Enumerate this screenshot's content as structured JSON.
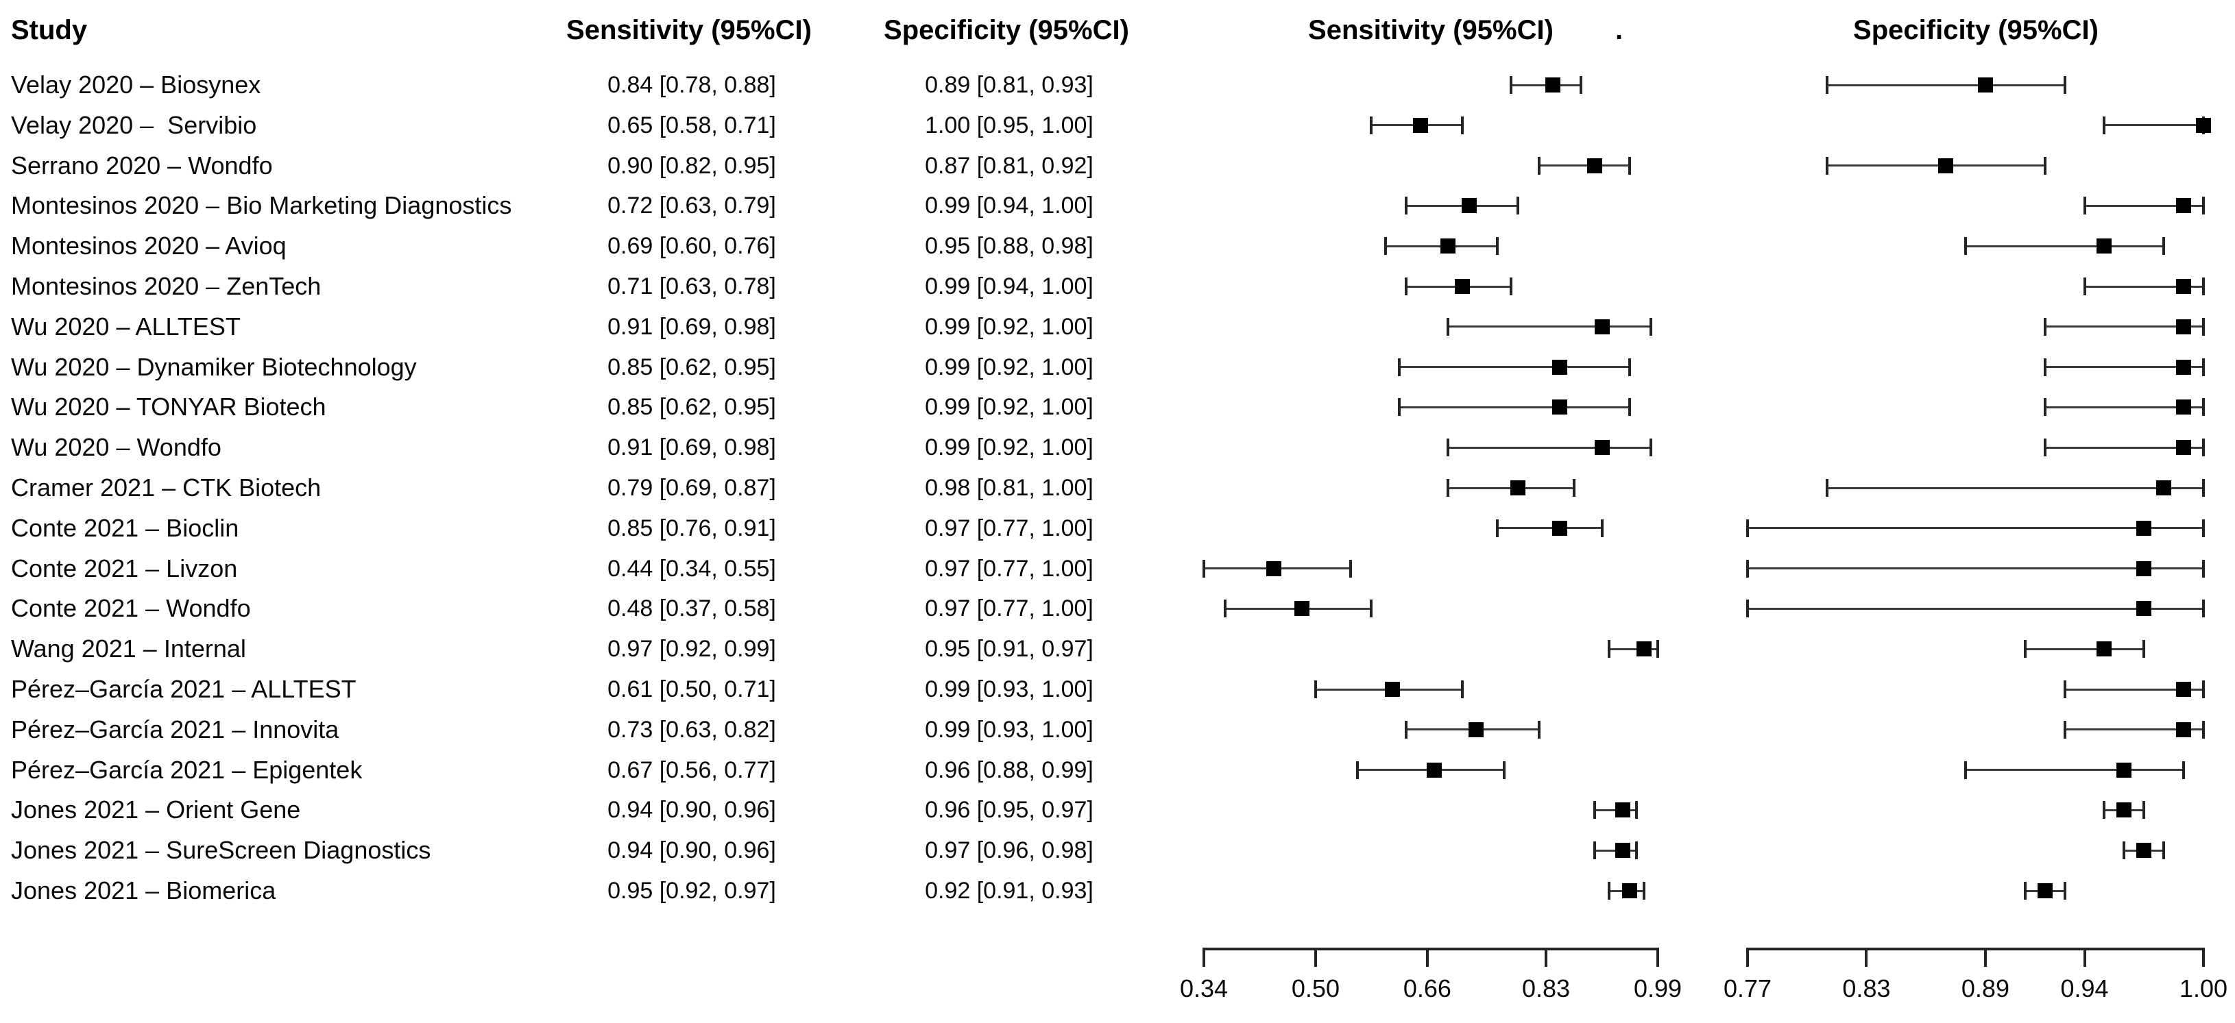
{
  "headers": {
    "study": "Study",
    "sensitivity_column": "Sensitivity (95%CI)",
    "specificity_column": "Specificity (95%CI)",
    "sensitivity_plot": "Sensitivity (95%CI)",
    "specificity_plot": "Specificity (95%CI)",
    "stray_dot": "."
  },
  "chart_data": {
    "type": "scatter",
    "subtype": "paired-forest-plot",
    "title": "",
    "columns": [
      "Study",
      "Sensitivity (95%CI)",
      "Specificity (95%CI)"
    ],
    "legend": "none",
    "grid": false,
    "axes": {
      "sensitivity": {
        "label": "Sensitivity (95%CI)",
        "min": 0.34,
        "max": 0.99,
        "ticks": [
          0.34,
          0.5,
          0.66,
          0.83,
          0.99
        ],
        "tick_labels": [
          "0.34",
          "0.50",
          "0.66",
          "0.83",
          "0.99"
        ]
      },
      "specificity": {
        "label": "Specificity (95%CI)",
        "min": 0.77,
        "max": 1.0,
        "ticks": [
          0.77,
          0.83,
          0.89,
          0.94,
          1.0
        ],
        "tick_labels": [
          "0.77",
          "0.83",
          "0.89",
          "0.94",
          "1.00"
        ]
      }
    },
    "rows": [
      {
        "study": "Velay 2020 – Biosynex",
        "sens": {
          "est": 0.84,
          "lo": 0.78,
          "hi": 0.88,
          "text": "0.84 [0.78, 0.88]"
        },
        "spec": {
          "est": 0.89,
          "lo": 0.81,
          "hi": 0.93,
          "text": "0.89 [0.81, 0.93]"
        }
      },
      {
        "study": "Velay 2020 –  Servibio",
        "sens": {
          "est": 0.65,
          "lo": 0.58,
          "hi": 0.71,
          "text": "0.65 [0.58, 0.71]"
        },
        "spec": {
          "est": 1.0,
          "lo": 0.95,
          "hi": 1.0,
          "text": "1.00 [0.95, 1.00]"
        }
      },
      {
        "study": "Serrano 2020 – Wondfo",
        "sens": {
          "est": 0.9,
          "lo": 0.82,
          "hi": 0.95,
          "text": "0.90 [0.82, 0.95]"
        },
        "spec": {
          "est": 0.87,
          "lo": 0.81,
          "hi": 0.92,
          "text": "0.87 [0.81, 0.92]"
        }
      },
      {
        "study": "Montesinos 2020 – Bio Marketing Diagnostics",
        "sens": {
          "est": 0.72,
          "lo": 0.63,
          "hi": 0.79,
          "text": "0.72 [0.63, 0.79]"
        },
        "spec": {
          "est": 0.99,
          "lo": 0.94,
          "hi": 1.0,
          "text": "0.99 [0.94, 1.00]"
        }
      },
      {
        "study": "Montesinos 2020 – Avioq",
        "sens": {
          "est": 0.69,
          "lo": 0.6,
          "hi": 0.76,
          "text": "0.69 [0.60, 0.76]"
        },
        "spec": {
          "est": 0.95,
          "lo": 0.88,
          "hi": 0.98,
          "text": "0.95 [0.88, 0.98]"
        }
      },
      {
        "study": "Montesinos 2020 – ZenTech",
        "sens": {
          "est": 0.71,
          "lo": 0.63,
          "hi": 0.78,
          "text": "0.71 [0.63, 0.78]"
        },
        "spec": {
          "est": 0.99,
          "lo": 0.94,
          "hi": 1.0,
          "text": "0.99 [0.94, 1.00]"
        }
      },
      {
        "study": "Wu 2020 – ALLTEST",
        "sens": {
          "est": 0.91,
          "lo": 0.69,
          "hi": 0.98,
          "text": "0.91 [0.69, 0.98]"
        },
        "spec": {
          "est": 0.99,
          "lo": 0.92,
          "hi": 1.0,
          "text": "0.99 [0.92, 1.00]"
        }
      },
      {
        "study": "Wu 2020 – Dynamiker Biotechnology",
        "sens": {
          "est": 0.85,
          "lo": 0.62,
          "hi": 0.95,
          "text": "0.85 [0.62, 0.95]"
        },
        "spec": {
          "est": 0.99,
          "lo": 0.92,
          "hi": 1.0,
          "text": "0.99 [0.92, 1.00]"
        }
      },
      {
        "study": "Wu 2020 – TONYAR Biotech",
        "sens": {
          "est": 0.85,
          "lo": 0.62,
          "hi": 0.95,
          "text": "0.85 [0.62, 0.95]"
        },
        "spec": {
          "est": 0.99,
          "lo": 0.92,
          "hi": 1.0,
          "text": "0.99 [0.92, 1.00]"
        }
      },
      {
        "study": "Wu 2020 – Wondfo",
        "sens": {
          "est": 0.91,
          "lo": 0.69,
          "hi": 0.98,
          "text": "0.91 [0.69, 0.98]"
        },
        "spec": {
          "est": 0.99,
          "lo": 0.92,
          "hi": 1.0,
          "text": "0.99 [0.92, 1.00]"
        }
      },
      {
        "study": "Cramer 2021 – CTK Biotech",
        "sens": {
          "est": 0.79,
          "lo": 0.69,
          "hi": 0.87,
          "text": "0.79 [0.69, 0.87]"
        },
        "spec": {
          "est": 0.98,
          "lo": 0.81,
          "hi": 1.0,
          "text": "0.98 [0.81, 1.00]"
        }
      },
      {
        "study": "Conte 2021 – Bioclin",
        "sens": {
          "est": 0.85,
          "lo": 0.76,
          "hi": 0.91,
          "text": "0.85 [0.76, 0.91]"
        },
        "spec": {
          "est": 0.97,
          "lo": 0.77,
          "hi": 1.0,
          "text": "0.97 [0.77, 1.00]"
        }
      },
      {
        "study": "Conte 2021 – Livzon",
        "sens": {
          "est": 0.44,
          "lo": 0.34,
          "hi": 0.55,
          "text": "0.44 [0.34, 0.55]"
        },
        "spec": {
          "est": 0.97,
          "lo": 0.77,
          "hi": 1.0,
          "text": "0.97 [0.77, 1.00]"
        }
      },
      {
        "study": "Conte 2021 – Wondfo",
        "sens": {
          "est": 0.48,
          "lo": 0.37,
          "hi": 0.58,
          "text": "0.48 [0.37, 0.58]"
        },
        "spec": {
          "est": 0.97,
          "lo": 0.77,
          "hi": 1.0,
          "text": "0.97 [0.77, 1.00]"
        }
      },
      {
        "study": "Wang 2021 – Internal",
        "sens": {
          "est": 0.97,
          "lo": 0.92,
          "hi": 0.99,
          "text": "0.97 [0.92, 0.99]"
        },
        "spec": {
          "est": 0.95,
          "lo": 0.91,
          "hi": 0.97,
          "text": "0.95 [0.91, 0.97]"
        }
      },
      {
        "study": "Pérez–García 2021 – ALLTEST",
        "sens": {
          "est": 0.61,
          "lo": 0.5,
          "hi": 0.71,
          "text": "0.61 [0.50, 0.71]"
        },
        "spec": {
          "est": 0.99,
          "lo": 0.93,
          "hi": 1.0,
          "text": "0.99 [0.93, 1.00]"
        }
      },
      {
        "study": "Pérez–García 2021 – Innovita",
        "sens": {
          "est": 0.73,
          "lo": 0.63,
          "hi": 0.82,
          "text": "0.73 [0.63, 0.82]"
        },
        "spec": {
          "est": 0.99,
          "lo": 0.93,
          "hi": 1.0,
          "text": "0.99 [0.93, 1.00]"
        }
      },
      {
        "study": "Pérez–García 2021 – Epigentek",
        "sens": {
          "est": 0.67,
          "lo": 0.56,
          "hi": 0.77,
          "text": "0.67 [0.56, 0.77]"
        },
        "spec": {
          "est": 0.96,
          "lo": 0.88,
          "hi": 0.99,
          "text": "0.96 [0.88, 0.99]"
        }
      },
      {
        "study": "Jones 2021 – Orient Gene",
        "sens": {
          "est": 0.94,
          "lo": 0.9,
          "hi": 0.96,
          "text": "0.94 [0.90, 0.96]"
        },
        "spec": {
          "est": 0.96,
          "lo": 0.95,
          "hi": 0.97,
          "text": "0.96 [0.95, 0.97]"
        }
      },
      {
        "study": "Jones 2021 – SureScreen Diagnostics",
        "sens": {
          "est": 0.94,
          "lo": 0.9,
          "hi": 0.96,
          "text": "0.94 [0.90, 0.96]"
        },
        "spec": {
          "est": 0.97,
          "lo": 0.96,
          "hi": 0.98,
          "text": "0.97 [0.96, 0.98]"
        }
      },
      {
        "study": "Jones 2021 – Biomerica",
        "sens": {
          "est": 0.95,
          "lo": 0.92,
          "hi": 0.97,
          "text": "0.95 [0.92, 0.97]"
        },
        "spec": {
          "est": 0.92,
          "lo": 0.91,
          "hi": 0.93,
          "text": "0.92 [0.91, 0.93]"
        }
      }
    ]
  }
}
